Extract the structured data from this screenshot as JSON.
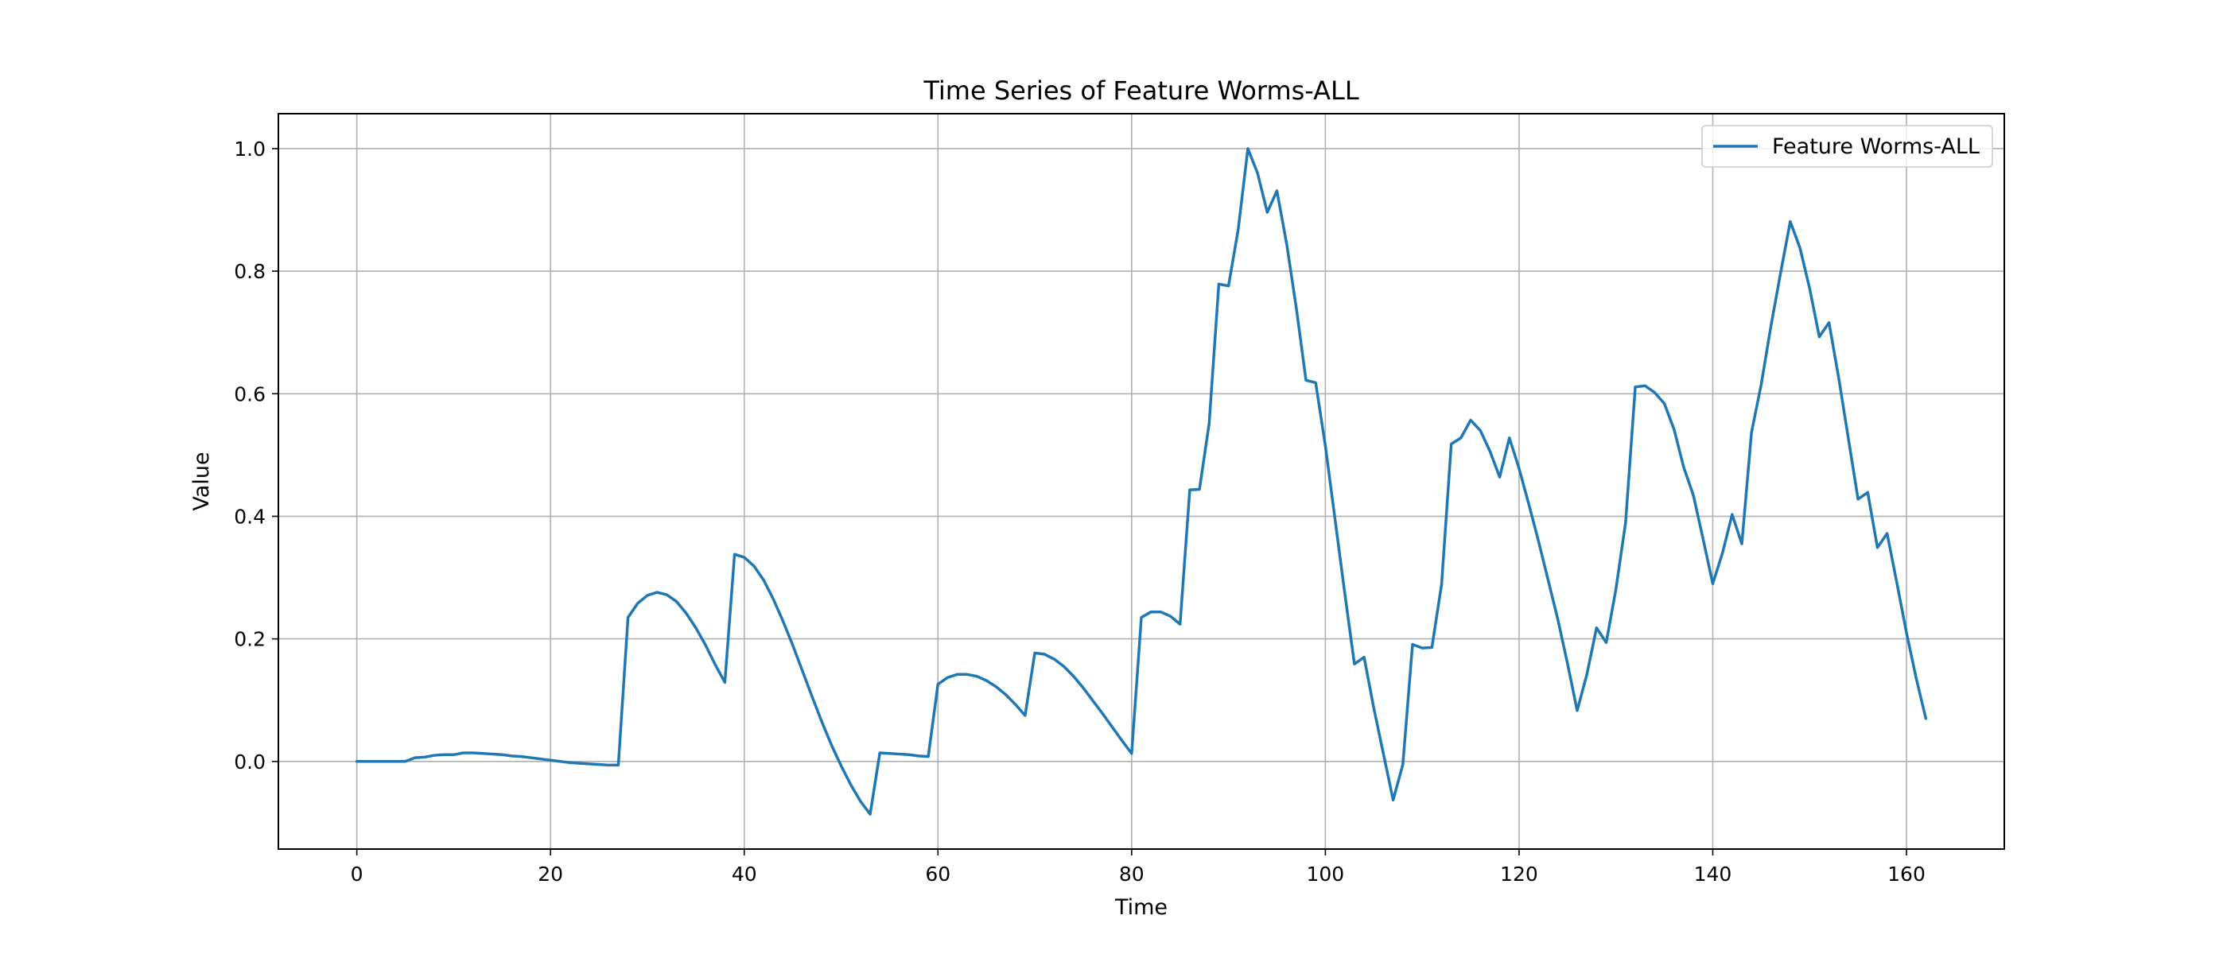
{
  "chart_data": {
    "type": "line",
    "title": "Time Series of Feature Worms-ALL",
    "xlabel": "Time",
    "ylabel": "Value",
    "xlim": [
      -8.1,
      170.1
    ],
    "ylim": [
      -0.143,
      1.057
    ],
    "xticks": [
      0,
      20,
      40,
      60,
      80,
      100,
      120,
      140,
      160
    ],
    "yticks": [
      0.0,
      0.2,
      0.4,
      0.6,
      0.8,
      1.0
    ],
    "xtick_labels": [
      "0",
      "20",
      "40",
      "60",
      "80",
      "100",
      "120",
      "140",
      "160"
    ],
    "ytick_labels": [
      "0.0",
      "0.2",
      "0.4",
      "0.6",
      "0.8",
      "1.0"
    ],
    "grid": true,
    "legend_position": "upper right",
    "series": [
      {
        "name": "Feature Worms-ALL",
        "color": "#1f77b4",
        "x": [
          0,
          1,
          2,
          3,
          4,
          5,
          6,
          7,
          8,
          9,
          10,
          11,
          12,
          13,
          14,
          15,
          16,
          17,
          18,
          19,
          20,
          21,
          22,
          23,
          24,
          25,
          26,
          27,
          28,
          29,
          30,
          31,
          32,
          33,
          34,
          35,
          36,
          37,
          38,
          39,
          40,
          41,
          42,
          43,
          44,
          45,
          46,
          47,
          48,
          49,
          50,
          51,
          52,
          53,
          54,
          55,
          56,
          57,
          58,
          59,
          60,
          61,
          62,
          63,
          64,
          65,
          66,
          67,
          68,
          69,
          70,
          71,
          72,
          73,
          74,
          75,
          76,
          77,
          78,
          79,
          80,
          81,
          82,
          83,
          84,
          85,
          86,
          87,
          88,
          89,
          90,
          91,
          92,
          93,
          94,
          95,
          96,
          97,
          98,
          99,
          100,
          101,
          102,
          103,
          104,
          105,
          106,
          107,
          108,
          109,
          110,
          111,
          112,
          113,
          114,
          115,
          116,
          117,
          118,
          119,
          120,
          121,
          122,
          123,
          124,
          125,
          126,
          127,
          128,
          129,
          130,
          131,
          132,
          133,
          134,
          135,
          136,
          137,
          138,
          139,
          140,
          141,
          142,
          143,
          144,
          145,
          146,
          147,
          148,
          149,
          150,
          151,
          152,
          153,
          154,
          155,
          156,
          157,
          158,
          159,
          160,
          161,
          162
        ],
        "y": [
          0.0,
          0.0,
          0.0,
          0.0,
          0.0,
          0.0,
          0.006,
          0.007,
          0.01,
          0.011,
          0.011,
          0.014,
          0.014,
          0.013,
          0.012,
          0.011,
          0.009,
          0.008,
          0.006,
          0.004,
          0.002,
          0.0,
          -0.002,
          -0.003,
          -0.004,
          -0.005,
          -0.006,
          -0.006,
          0.235,
          0.258,
          0.271,
          0.276,
          0.272,
          0.261,
          0.242,
          0.218,
          0.19,
          0.158,
          0.129,
          0.338,
          0.333,
          0.319,
          0.296,
          0.265,
          0.229,
          0.19,
          0.148,
          0.106,
          0.065,
          0.027,
          -0.007,
          -0.038,
          -0.065,
          -0.086,
          0.014,
          0.013,
          0.012,
          0.011,
          0.009,
          0.008,
          0.126,
          0.137,
          0.142,
          0.142,
          0.139,
          0.132,
          0.122,
          0.109,
          0.093,
          0.075,
          0.177,
          0.175,
          0.167,
          0.155,
          0.139,
          0.12,
          0.099,
          0.078,
          0.056,
          0.034,
          0.013,
          0.235,
          0.244,
          0.244,
          0.237,
          0.224,
          0.443,
          0.444,
          0.551,
          0.779,
          0.776,
          0.868,
          1.0,
          0.96,
          0.896,
          0.931,
          0.845,
          0.74,
          0.622,
          0.618,
          0.515,
          0.395,
          0.275,
          0.159,
          0.17,
          0.087,
          0.012,
          -0.063,
          -0.005,
          0.191,
          0.185,
          0.186,
          0.289,
          0.518,
          0.528,
          0.557,
          0.54,
          0.506,
          0.464,
          0.528,
          0.478,
          0.42,
          0.36,
          0.296,
          0.232,
          0.16,
          0.083,
          0.142,
          0.218,
          0.194,
          0.281,
          0.39,
          0.611,
          0.613,
          0.602,
          0.584,
          0.542,
          0.48,
          0.434,
          0.363,
          0.29,
          0.34,
          0.403,
          0.355,
          0.537,
          0.615,
          0.71,
          0.797,
          0.881,
          0.838,
          0.772,
          0.693,
          0.716,
          0.626,
          0.527,
          0.428,
          0.439,
          0.349,
          0.372,
          0.292,
          0.21,
          0.136,
          0.07
        ]
      }
    ]
  }
}
